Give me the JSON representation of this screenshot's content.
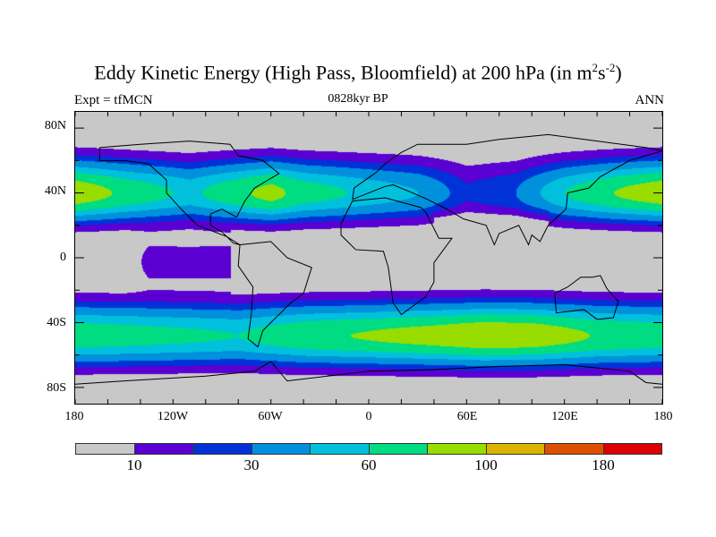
{
  "title": {
    "main": "Eddy Kinetic Energy (High Pass, Bloomfield) at 200 hPa (in m",
    "sup1": "2",
    "mid": "s",
    "sup2": "-2",
    "end": ")"
  },
  "subtitle": "0828kyr BP",
  "left_string": "Expt = tfMCN",
  "right_string": "ANN",
  "lat_labels": [
    "80N",
    "40N",
    "0",
    "40S",
    "80S"
  ],
  "lon_labels": [
    "180",
    "120W",
    "60W",
    "0",
    "60E",
    "120E",
    "180"
  ],
  "colorbar": {
    "colors": [
      "#c8c8c8",
      "#5a00d2",
      "#0032d8",
      "#0090dc",
      "#00c0dc",
      "#00dc82",
      "#98dc00",
      "#dcb400",
      "#dc5000",
      "#dc0000"
    ],
    "labels": [
      "10",
      "30",
      "60",
      "100",
      "180"
    ]
  }
}
